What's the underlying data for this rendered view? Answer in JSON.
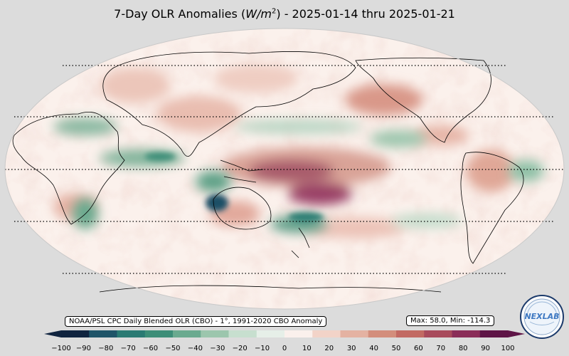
{
  "title": {
    "prefix": "7-Day OLR Anomalies (",
    "unit_base": "W/m",
    "unit_exp": "2",
    "suffix": ") - 2025-01-14 thru 2025-01-21"
  },
  "source_label": "NOAA/PSL CPC Daily Blended OLR (CBO) - 1°, 1991-2020 CBO Anomaly",
  "stats_label": "Max: 58.0,  Min: -114.3",
  "logo": {
    "text": "NEXLAB",
    "icon": "nexlab-globe-logo"
  },
  "colorbar": {
    "ticks": [
      "−100",
      "−90",
      "−80",
      "−70",
      "−60",
      "−50",
      "−40",
      "−30",
      "−20",
      "−10",
      "0",
      "10",
      "20",
      "30",
      "40",
      "50",
      "60",
      "70",
      "80",
      "90",
      "100"
    ],
    "min": -100,
    "max": 100,
    "colors": [
      "#10243f",
      "#1f5468",
      "#2a7a73",
      "#3d8e78",
      "#6aaa8f",
      "#9cc6ad",
      "#c7dfcf",
      "#e6efe8",
      "#faf0ec",
      "#f2d3c8",
      "#e4b2a2",
      "#d38e7c",
      "#c26a63",
      "#a84a5c",
      "#8a2d58",
      "#5e1446"
    ]
  },
  "map": {
    "projection": "robinson",
    "latitude_lines": [
      "60°N",
      "30°N",
      "0°",
      "30°S",
      "60°S"
    ],
    "features": [
      {
        "name": "maritime-continent",
        "anomaly": "positive"
      },
      {
        "name": "central-pacific",
        "anomaly": "positive"
      },
      {
        "name": "indian-ocean",
        "anomaly": "negative"
      },
      {
        "name": "northwest-australia",
        "anomaly": "strong-negative"
      },
      {
        "name": "south-pacific-convergence",
        "anomaly": "negative"
      }
    ]
  }
}
